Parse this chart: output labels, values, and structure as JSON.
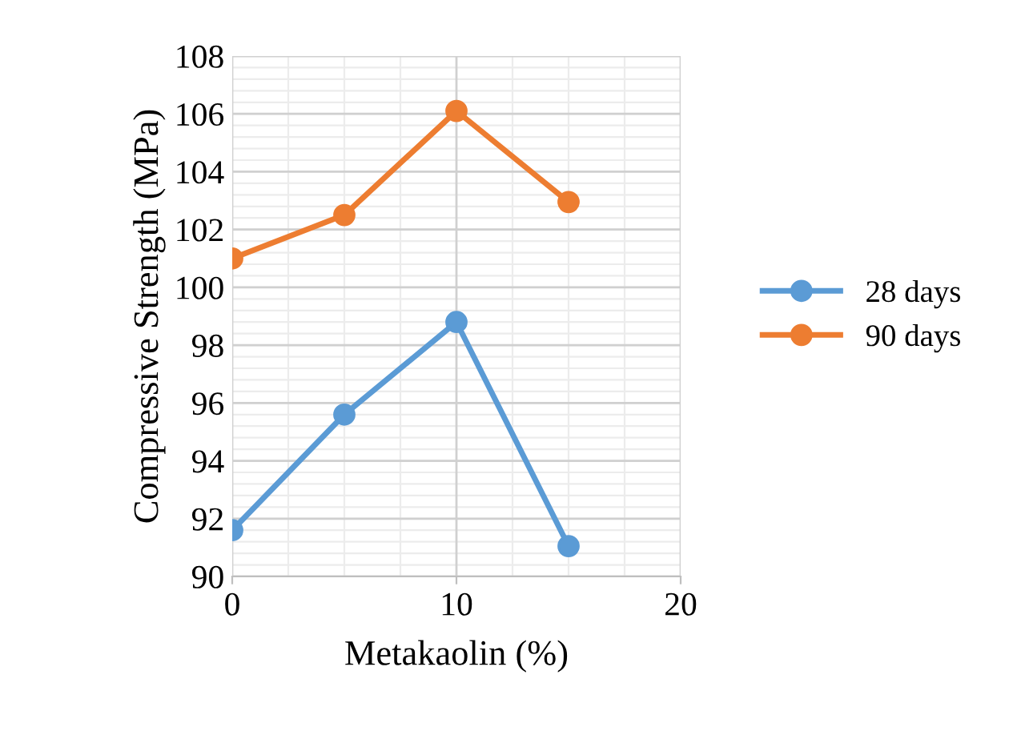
{
  "chart_data": {
    "type": "line",
    "xlabel": "Metakaolin (%)",
    "ylabel": "Compressive Strength (MPa)",
    "x": [
      0,
      5,
      10,
      15
    ],
    "series": [
      {
        "name": "28 days",
        "color": "#5b9bd5",
        "values": [
          91.6,
          95.6,
          98.8,
          91.05
        ]
      },
      {
        "name": "90 days",
        "color": "#ed7d31",
        "values": [
          101.0,
          102.5,
          106.1,
          102.95
        ]
      }
    ],
    "xlim": [
      0,
      20
    ],
    "xticks": [
      0,
      10,
      20
    ],
    "ylim": [
      90,
      108
    ],
    "yticks": [
      90,
      92,
      94,
      96,
      98,
      100,
      102,
      104,
      106,
      108
    ],
    "grid": true,
    "legend": "right",
    "marker": "circle",
    "line_style": "solid"
  }
}
